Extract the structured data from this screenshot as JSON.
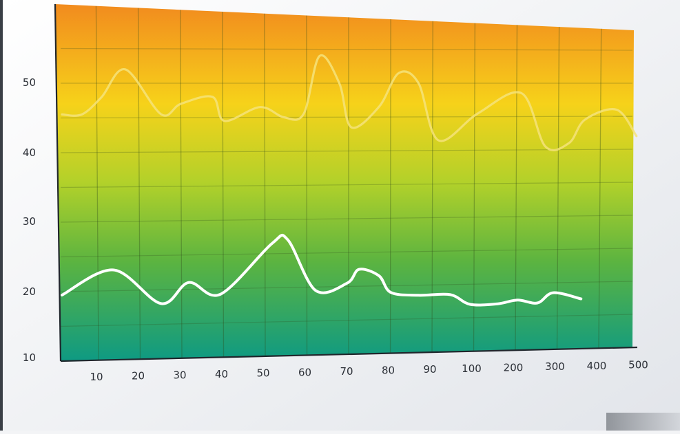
{
  "chart_data": {
    "type": "line",
    "title": "",
    "xlabel": "",
    "ylabel": "",
    "categories": [
      "10",
      "20",
      "30",
      "40",
      "50",
      "60",
      "70",
      "80",
      "90",
      "100",
      "200",
      "300",
      "400",
      "500"
    ],
    "yticks": [
      "10",
      "20",
      "30",
      "40",
      "50"
    ],
    "ylim": [
      10,
      56
    ],
    "grid": true,
    "legend": "none",
    "series": [
      {
        "color": "#f4e37a",
        "points": [
          [
            0.0,
            45.5
          ],
          [
            0.5,
            45.5
          ],
          [
            1.0,
            48.0
          ],
          [
            1.6,
            52.0
          ],
          [
            2.5,
            45.5
          ],
          [
            3.0,
            47.0
          ],
          [
            3.8,
            48.0
          ],
          [
            4.1,
            44.5
          ],
          [
            5.0,
            46.5
          ],
          [
            5.6,
            45.0
          ],
          [
            6.1,
            45.5
          ],
          [
            6.5,
            54.0
          ],
          [
            7.0,
            50.0
          ],
          [
            7.3,
            43.5
          ],
          [
            8.0,
            46.5
          ],
          [
            8.5,
            51.5
          ],
          [
            9.0,
            50.0
          ],
          [
            9.5,
            41.5
          ],
          [
            10.5,
            45.5
          ],
          [
            11.6,
            48.5
          ],
          [
            12.2,
            40.5
          ],
          [
            12.8,
            41.0
          ],
          [
            13.2,
            44.5
          ],
          [
            14.0,
            46.0
          ],
          [
            14.5,
            42.0
          ]
        ]
      },
      {
        "color": "#ffffff",
        "points": [
          [
            0.0,
            19.5
          ],
          [
            1.3,
            23.0
          ],
          [
            2.5,
            18.0
          ],
          [
            3.2,
            21.0
          ],
          [
            4.0,
            19.2
          ],
          [
            5.3,
            26.5
          ],
          [
            5.7,
            27.0
          ],
          [
            6.4,
            19.5
          ],
          [
            7.2,
            20.5
          ],
          [
            7.5,
            22.5
          ],
          [
            8.0,
            21.5
          ],
          [
            8.3,
            19.0
          ],
          [
            9.0,
            18.5
          ],
          [
            9.8,
            18.5
          ],
          [
            10.3,
            17.0
          ],
          [
            11.0,
            17.0
          ],
          [
            11.5,
            17.5
          ],
          [
            12.0,
            17.0
          ],
          [
            12.4,
            18.5
          ],
          [
            13.1,
            17.5
          ]
        ]
      }
    ]
  }
}
